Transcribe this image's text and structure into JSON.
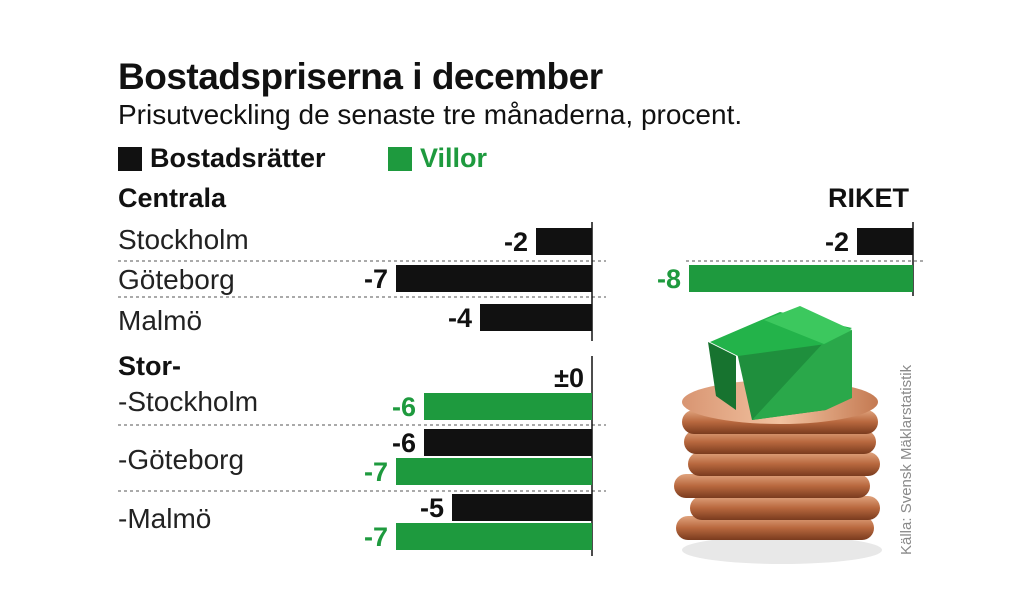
{
  "chart_data": {
    "type": "bar",
    "orientation": "horizontal",
    "title": "Bostadspriserna i december",
    "subtitle": "Prisutveckling de senaste tre månaderna, procent.",
    "legend": [
      {
        "name": "Bostadsrätter",
        "color": "#111111"
      },
      {
        "name": "Villor",
        "color": "#1e9a3e"
      }
    ],
    "sections": [
      {
        "label": "Centrala",
        "rows": [
          {
            "label": "Stockholm",
            "bars": [
              {
                "series": "Bostadsrätter",
                "value": -2,
                "text": "-2"
              }
            ]
          },
          {
            "label": "Göteborg",
            "bars": [
              {
                "series": "Bostadsrätter",
                "value": -7,
                "text": "-7"
              }
            ]
          },
          {
            "label": "Malmö",
            "bars": [
              {
                "series": "Bostadsrätter",
                "value": -4,
                "text": "-4"
              }
            ]
          }
        ]
      },
      {
        "label": "Stor-",
        "rows": [
          {
            "label": "-Stockholm",
            "bars": [
              {
                "series": "Bostadsrätter",
                "value": 0,
                "text": "±0"
              },
              {
                "series": "Villor",
                "value": -6,
                "text": "-6"
              }
            ]
          },
          {
            "label": "-Göteborg",
            "bars": [
              {
                "series": "Bostadsrätter",
                "value": -6,
                "text": "-6"
              },
              {
                "series": "Villor",
                "value": -7,
                "text": "-7"
              }
            ]
          },
          {
            "label": "-Malmö",
            "bars": [
              {
                "series": "Bostadsrätter",
                "value": -5,
                "text": "-5"
              },
              {
                "series": "Villor",
                "value": -7,
                "text": "-7"
              }
            ]
          }
        ]
      }
    ],
    "national": {
      "label": "RIKET",
      "bars": [
        {
          "series": "Bostadsrätter",
          "value": -2,
          "text": "-2"
        },
        {
          "series": "Villor",
          "value": -8,
          "text": "-8"
        }
      ]
    },
    "source": "Källa: Svensk Mäklarstatistik"
  },
  "illustration": {
    "description_icon": "house-on-coins-icon"
  }
}
